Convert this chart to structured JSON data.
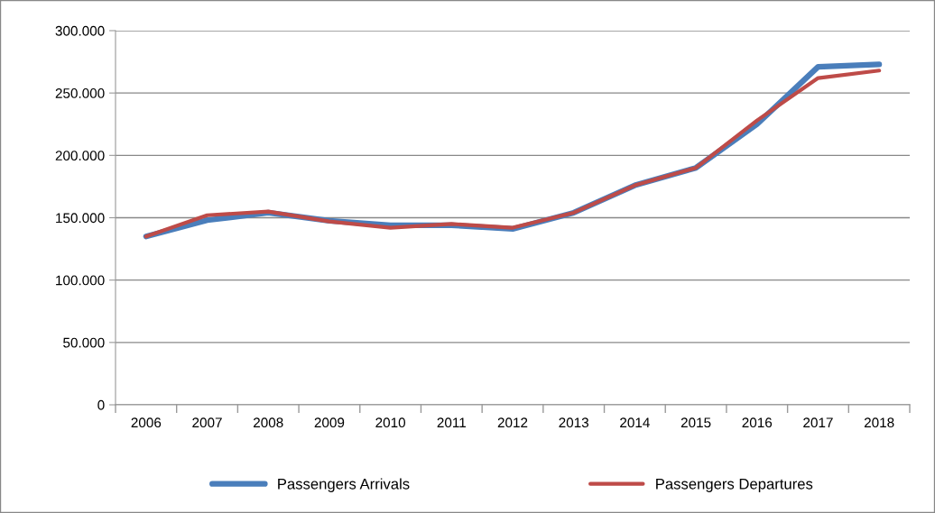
{
  "chart_data": {
    "type": "line",
    "categories": [
      "2006",
      "2007",
      "2008",
      "2009",
      "2010",
      "2011",
      "2012",
      "2013",
      "2014",
      "2015",
      "2016",
      "2017",
      "2018"
    ],
    "series": [
      {
        "name": "Passengers Arrivals",
        "color": "#4a7ebb",
        "values": [
          135000,
          148000,
          154000,
          147500,
          144000,
          144000,
          141000,
          154000,
          176000,
          190000,
          225000,
          271000,
          273000
        ]
      },
      {
        "name": "Passengers Departures",
        "color": "#be4b48",
        "values": [
          135000,
          152000,
          155000,
          147000,
          142000,
          145000,
          142000,
          154000,
          176000,
          190000,
          228000,
          262000,
          268000
        ]
      }
    ],
    "ylim": [
      0,
      300000
    ],
    "yticks": [
      {
        "value": 0,
        "label": "0"
      },
      {
        "value": 50000,
        "label": "50.000"
      },
      {
        "value": 100000,
        "label": "100.000"
      },
      {
        "value": 150000,
        "label": "150.000"
      },
      {
        "value": 200000,
        "label": "200.000"
      },
      {
        "value": 250000,
        "label": "250.000"
      },
      {
        "value": 300000,
        "label": "300.000"
      }
    ],
    "grid": "y",
    "legend": "bottom",
    "marker": "none",
    "line_style": "solid"
  }
}
